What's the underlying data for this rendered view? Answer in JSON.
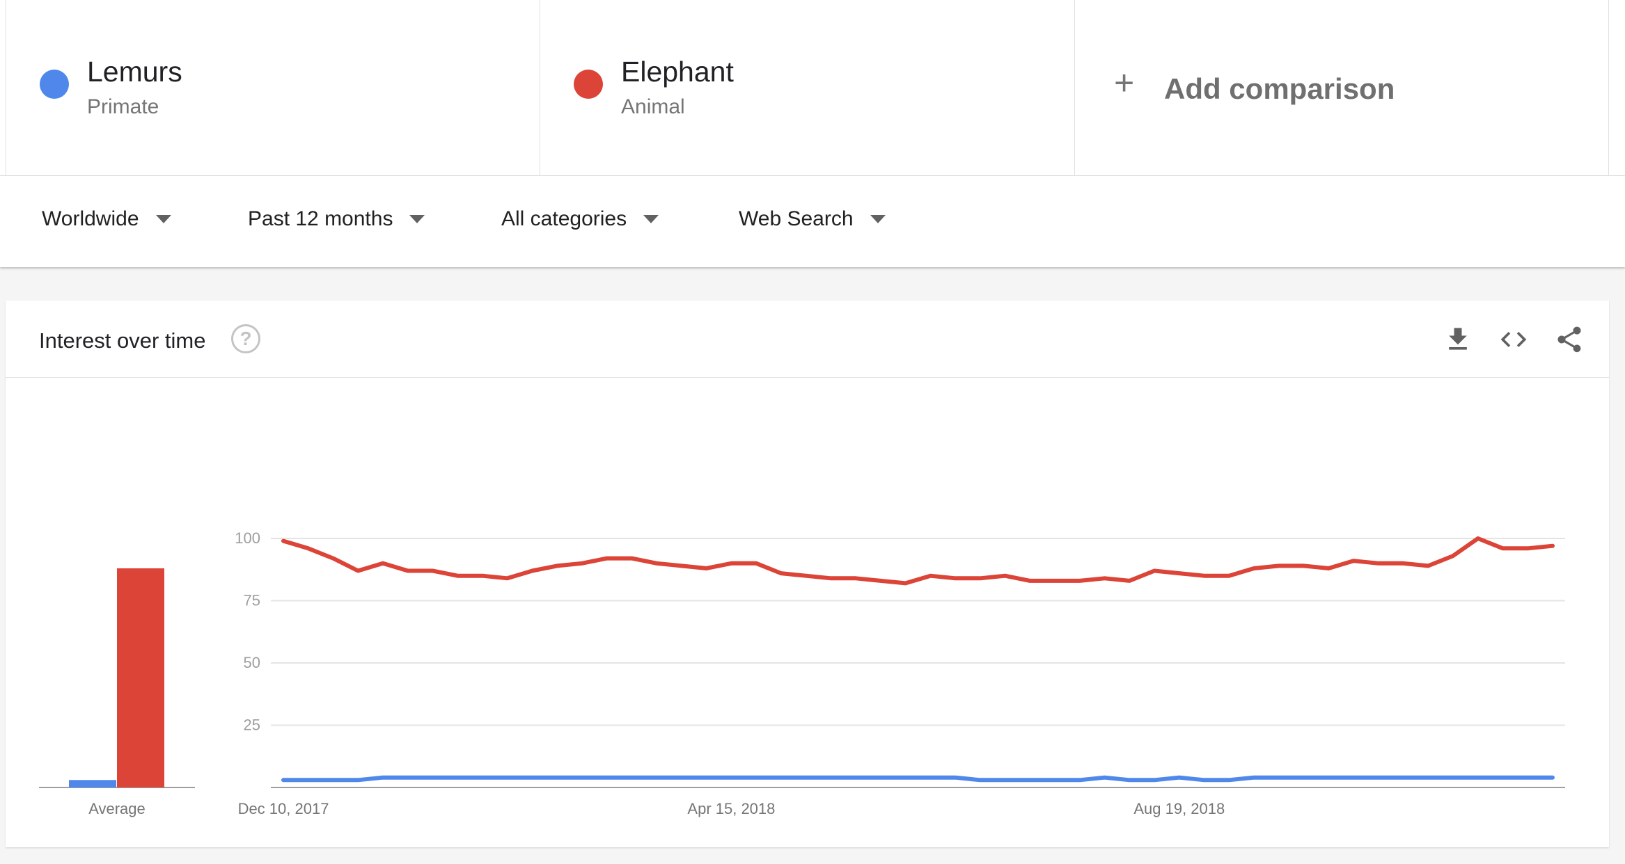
{
  "terms": [
    {
      "name": "Lemurs",
      "category": "Primate",
      "color": "#4f87eb"
    },
    {
      "name": "Elephant",
      "category": "Animal",
      "color": "#db4437"
    }
  ],
  "add_comparison": {
    "icon": "plus-icon",
    "label": "Add comparison"
  },
  "filters": [
    {
      "label": "Worldwide"
    },
    {
      "label": "Past 12 months"
    },
    {
      "label": "All categories"
    },
    {
      "label": "Web Search"
    }
  ],
  "card": {
    "title": "Interest over time",
    "icons": [
      "help-icon",
      "download-icon",
      "embed-code-icon",
      "share-icon"
    ]
  },
  "chart_data": [
    {
      "type": "bar",
      "categories": [
        "Average"
      ],
      "series": [
        {
          "name": "Lemurs",
          "values": [
            3
          ],
          "color": "#4f87eb"
        },
        {
          "name": "Elephant",
          "values": [
            88
          ],
          "color": "#db4437"
        }
      ],
      "ylim": [
        0,
        100
      ]
    },
    {
      "type": "line",
      "x_start": "Dec 10, 2017",
      "x_tick_labels": [
        "Dec 10, 2017",
        "Apr 15, 2018",
        "Aug 19, 2018"
      ],
      "x_tick_indices": [
        0,
        18,
        36
      ],
      "y_ticks": [
        25,
        50,
        75,
        100
      ],
      "ylim": [
        0,
        100
      ],
      "grid": true,
      "series": [
        {
          "name": "Lemurs",
          "color": "#4f87eb",
          "values": [
            3,
            3,
            3,
            3,
            4,
            4,
            4,
            4,
            4,
            4,
            4,
            4,
            4,
            4,
            4,
            4,
            4,
            4,
            4,
            4,
            4,
            4,
            4,
            4,
            4,
            4,
            4,
            4,
            3,
            3,
            3,
            3,
            3,
            4,
            3,
            3,
            4,
            3,
            3,
            4,
            4,
            4,
            4,
            4,
            4,
            4,
            4,
            4,
            4,
            4,
            4,
            4
          ]
        },
        {
          "name": "Elephant",
          "color": "#db4437",
          "values": [
            99,
            96,
            92,
            87,
            90,
            87,
            87,
            85,
            85,
            84,
            87,
            89,
            90,
            92,
            92,
            90,
            89,
            88,
            90,
            90,
            86,
            85,
            84,
            84,
            83,
            82,
            85,
            84,
            84,
            85,
            83,
            83,
            83,
            84,
            83,
            87,
            86,
            85,
            85,
            88,
            89,
            89,
            88,
            91,
            90,
            90,
            89,
            93,
            100,
            96,
            96,
            97
          ]
        }
      ]
    }
  ]
}
